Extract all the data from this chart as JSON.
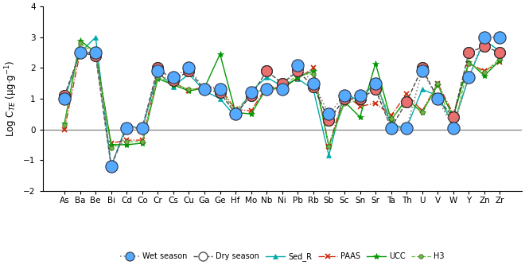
{
  "elements": [
    "As",
    "Ba",
    "Be",
    "Bi",
    "Cd",
    "Co",
    "Cr",
    "Cs",
    "Cu",
    "Ga",
    "Ge",
    "Hf",
    "Mo",
    "Nb",
    "Ni",
    "Pb",
    "Rb",
    "Sb",
    "Sc",
    "Sn",
    "Sr",
    "Ta",
    "Th",
    "U",
    "V",
    "W",
    "Y",
    "Zn",
    "Zr"
  ],
  "wet_season": [
    1.0,
    2.5,
    2.5,
    -1.2,
    0.05,
    0.05,
    1.9,
    1.7,
    2.0,
    1.3,
    1.3,
    0.5,
    1.2,
    1.3,
    1.3,
    2.1,
    1.5,
    0.5,
    1.1,
    1.1,
    1.5,
    0.05,
    0.05,
    1.9,
    1.0,
    0.05,
    1.7,
    3.0,
    3.0
  ],
  "dry_season": [
    1.1,
    2.5,
    2.4,
    -1.2,
    0.05,
    0.05,
    2.0,
    1.6,
    1.9,
    1.3,
    1.2,
    0.5,
    1.1,
    1.9,
    1.5,
    1.9,
    1.4,
    0.3,
    1.0,
    1.0,
    1.3,
    0.05,
    0.9,
    2.0,
    1.0,
    0.4,
    2.5,
    2.7,
    2.5
  ],
  "sed_r": [
    1.0,
    2.5,
    3.0,
    -1.2,
    0.15,
    0.0,
    1.85,
    1.4,
    1.8,
    1.25,
    1.0,
    0.4,
    1.25,
    1.7,
    1.4,
    1.65,
    1.3,
    -0.85,
    1.2,
    0.9,
    1.6,
    0.15,
    0.05,
    1.3,
    1.1,
    0.15,
    1.7,
    2.9,
    2.55
  ],
  "paas": [
    0.0,
    2.5,
    2.5,
    -0.45,
    -0.35,
    -0.35,
    1.8,
    1.55,
    1.25,
    1.4,
    1.35,
    0.65,
    0.6,
    1.4,
    1.35,
    1.65,
    2.0,
    -0.55,
    1.15,
    0.75,
    0.85,
    0.45,
    1.15,
    0.6,
    1.5,
    0.5,
    2.15,
    1.9,
    2.2
  ],
  "ucc": [
    0.2,
    2.9,
    2.5,
    -0.5,
    -0.5,
    -0.45,
    1.65,
    1.45,
    1.25,
    1.35,
    2.45,
    0.55,
    0.5,
    1.35,
    1.3,
    1.7,
    1.9,
    -0.55,
    0.9,
    0.4,
    2.15,
    0.3,
    1.0,
    0.55,
    1.45,
    0.4,
    2.2,
    1.75,
    2.25
  ],
  "h3": [
    0.15,
    2.8,
    2.45,
    -0.6,
    -0.4,
    -0.4,
    1.7,
    1.5,
    1.3,
    1.35,
    1.3,
    0.6,
    1.15,
    1.35,
    1.35,
    1.8,
    1.8,
    -0.55,
    0.85,
    0.95,
    1.5,
    0.35,
    0.9,
    0.55,
    1.5,
    -0.05,
    2.15,
    1.85,
    2.3
  ],
  "wet_line_color": "#555555",
  "wet_marker_color": "#55aaff",
  "dry_line_color": "#222222",
  "dry_marker_face": "#dd2222",
  "sed_color": "#00aaaa",
  "paas_color": "#cc2200",
  "ucc_color": "#009900",
  "h3_color": "#66bb44",
  "ylabel": "Log C$_{TE}$ (μg·g$^{-1}$)",
  "ylim": [
    -2,
    4
  ],
  "yticks": [
    -2,
    -1,
    0,
    1,
    2,
    3,
    4
  ]
}
